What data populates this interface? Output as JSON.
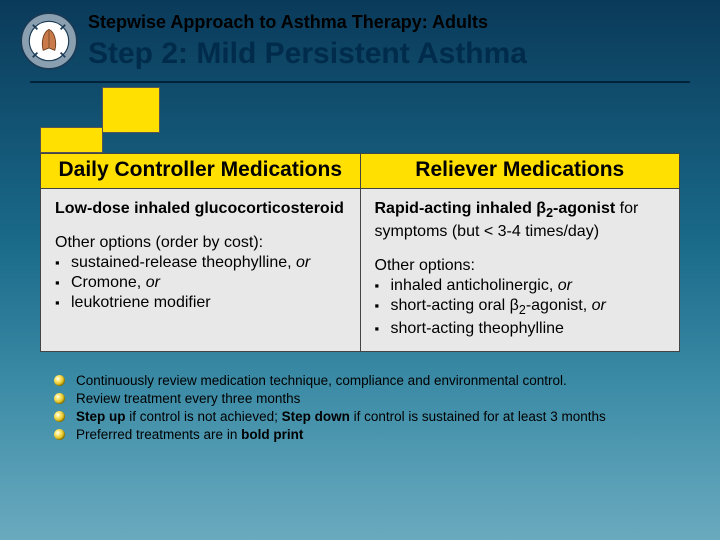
{
  "colors": {
    "bg_gradient": [
      "#0a3a5a",
      "#1a6a8a",
      "#3a8aa5",
      "#6aaabf"
    ],
    "accent_yellow": "#ffe000",
    "cell_bg": "#e8e8e8",
    "border": "#444444",
    "title_color": "#002b4a",
    "rule_color": "#00223a"
  },
  "typography": {
    "pretitle_size_pt": 14,
    "title_size_pt": 22,
    "header_size_pt": 16,
    "body_size_pt": 12,
    "footer_size_pt": 10
  },
  "header": {
    "pretitle": "Stepwise Approach to Asthma Therapy:  Adults",
    "title": "Step 2: Mild Persistent Asthma",
    "logo_alt": "Global Initiative for Asthma logo"
  },
  "table": {
    "steps_shown": 2,
    "columns": [
      "Daily Controller Medications",
      "Reliever Medications"
    ],
    "left": {
      "primary_html": "<span class=\"bold\">Low-dose inhaled glucocorticosteroid</span>",
      "options_label": "Other options (order by cost):",
      "options": [
        "sustained-release theophylline, <i>or</i>",
        "Cromone, <i>or</i>",
        "leukotriene modifier"
      ]
    },
    "right": {
      "primary_html": "<span class=\"bold\">Rapid-acting inhaled β<span class=\"sub2\">2</span>-agonist</span> for symptoms (but &lt; 3-4 times/day)",
      "options_label": "Other options:",
      "options": [
        "inhaled anticholinergic, <i>or</i>",
        "short-acting oral β<span class=\"sub2\">2</span>-agonist, <i>or</i>",
        "short-acting theophylline"
      ]
    }
  },
  "footer": {
    "items": [
      "Continuously review medication technique, compliance and environmental control.",
      "Review treatment every three months",
      "<b>Step up</b> if control is not achieved; <b>Step down</b> if control is sustained for at least 3 months",
      "Preferred treatments are  in <b>bold print</b>"
    ]
  }
}
